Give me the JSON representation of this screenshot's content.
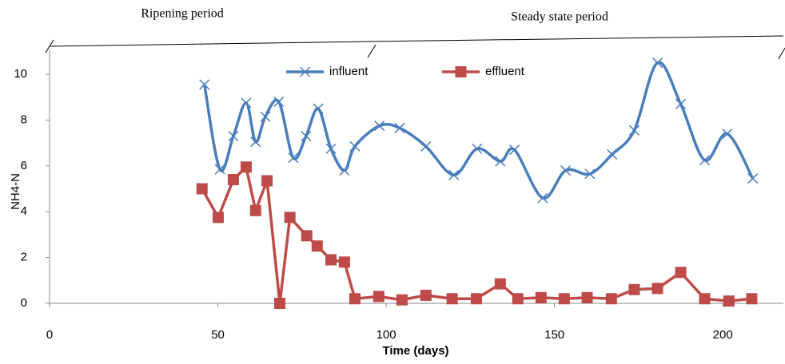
{
  "chart_data": {
    "type": "line",
    "annotations": [
      "Ripening period",
      "Steady state period"
    ],
    "xlabel": "Time (days)",
    "ylabel": "NH4-N",
    "xlim": [
      0,
      218
    ],
    "xticks": [
      0,
      50,
      100,
      150,
      200
    ],
    "ylim": [
      0,
      11
    ],
    "yticks": [
      0,
      2,
      4,
      6,
      8,
      10
    ],
    "series": [
      {
        "name": "influent",
        "color": "#4a7ebb",
        "marker": "x",
        "smooth": true,
        "x": [
          46,
          50.6,
          54.6,
          58.4,
          61.2,
          64.1,
          68.1,
          72.4,
          76.2,
          79.8,
          83.6,
          87.6,
          90.7,
          98,
          104,
          111.8,
          120.1,
          127,
          133.9,
          138.1,
          146.5,
          153.3,
          160.5,
          167.1,
          173.7,
          180.6,
          187.5,
          194.6,
          201.3,
          208.9
        ],
        "values": [
          9.55,
          5.85,
          7.3,
          8.75,
          7.05,
          8.15,
          8.8,
          6.35,
          7.3,
          8.5,
          6.75,
          5.8,
          6.85,
          7.75,
          7.65,
          6.85,
          5.6,
          6.75,
          6.2,
          6.7,
          4.6,
          5.8,
          5.65,
          6.5,
          7.55,
          10.5,
          8.7,
          6.25,
          7.4,
          5.45
        ]
      },
      {
        "name": "effluent",
        "color": "#be4b48",
        "marker": "square",
        "smooth": false,
        "x": [
          45.3,
          50.1,
          54.6,
          58.4,
          61.2,
          64.6,
          68.4,
          71.4,
          76.4,
          79.5,
          83.6,
          87.6,
          90.7,
          97.8,
          104.7,
          111.8,
          119.6,
          126.8,
          133.9,
          139.1,
          146,
          152.9,
          159.7,
          166.9,
          173.7,
          180.6,
          187.5,
          194.6,
          201.8,
          208.6
        ],
        "values": [
          5.0,
          3.75,
          5.4,
          5.95,
          4.05,
          5.35,
          0,
          3.75,
          2.95,
          2.5,
          1.9,
          1.8,
          0.2,
          0.3,
          0.15,
          0.35,
          0.2,
          0.2,
          0.85,
          0.2,
          0.25,
          0.2,
          0.25,
          0.2,
          0.6,
          0.65,
          1.35,
          0.2,
          0.1,
          0.2
        ]
      }
    ]
  }
}
